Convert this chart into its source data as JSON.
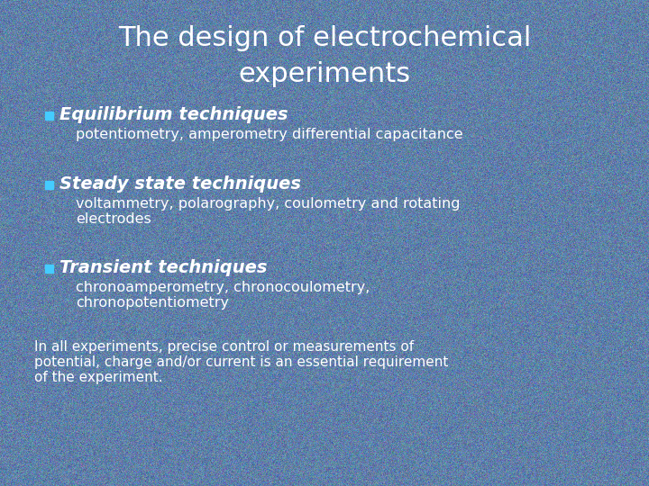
{
  "title_line1": "The design of electrochemical",
  "title_line2": "experiments",
  "title_color": "#FFFFFF",
  "title_fontsize": 22,
  "bg_color": "#6080a8",
  "bullet_color": "#44ccff",
  "bullet_items": [
    {
      "heading": "Equilibrium techniques",
      "subtext": [
        "potentiometry, amperometry differential capacitance"
      ]
    },
    {
      "heading": "Steady state techniques",
      "subtext": [
        "voltammetry, polarography, coulometry and rotating",
        "electrodes"
      ]
    },
    {
      "heading": "Transient techniques",
      "subtext": [
        "chronoamperometry, chronocoulometry,",
        "chronopotentiometry"
      ]
    }
  ],
  "footer_lines": [
    "In all experiments, precise control or measurements of",
    "potential, charge and/or current is an essential requirement",
    "of the experiment."
  ],
  "text_color": "#FFFFFF",
  "heading_fontsize": 14,
  "subtext_fontsize": 11.5,
  "footer_fontsize": 11
}
